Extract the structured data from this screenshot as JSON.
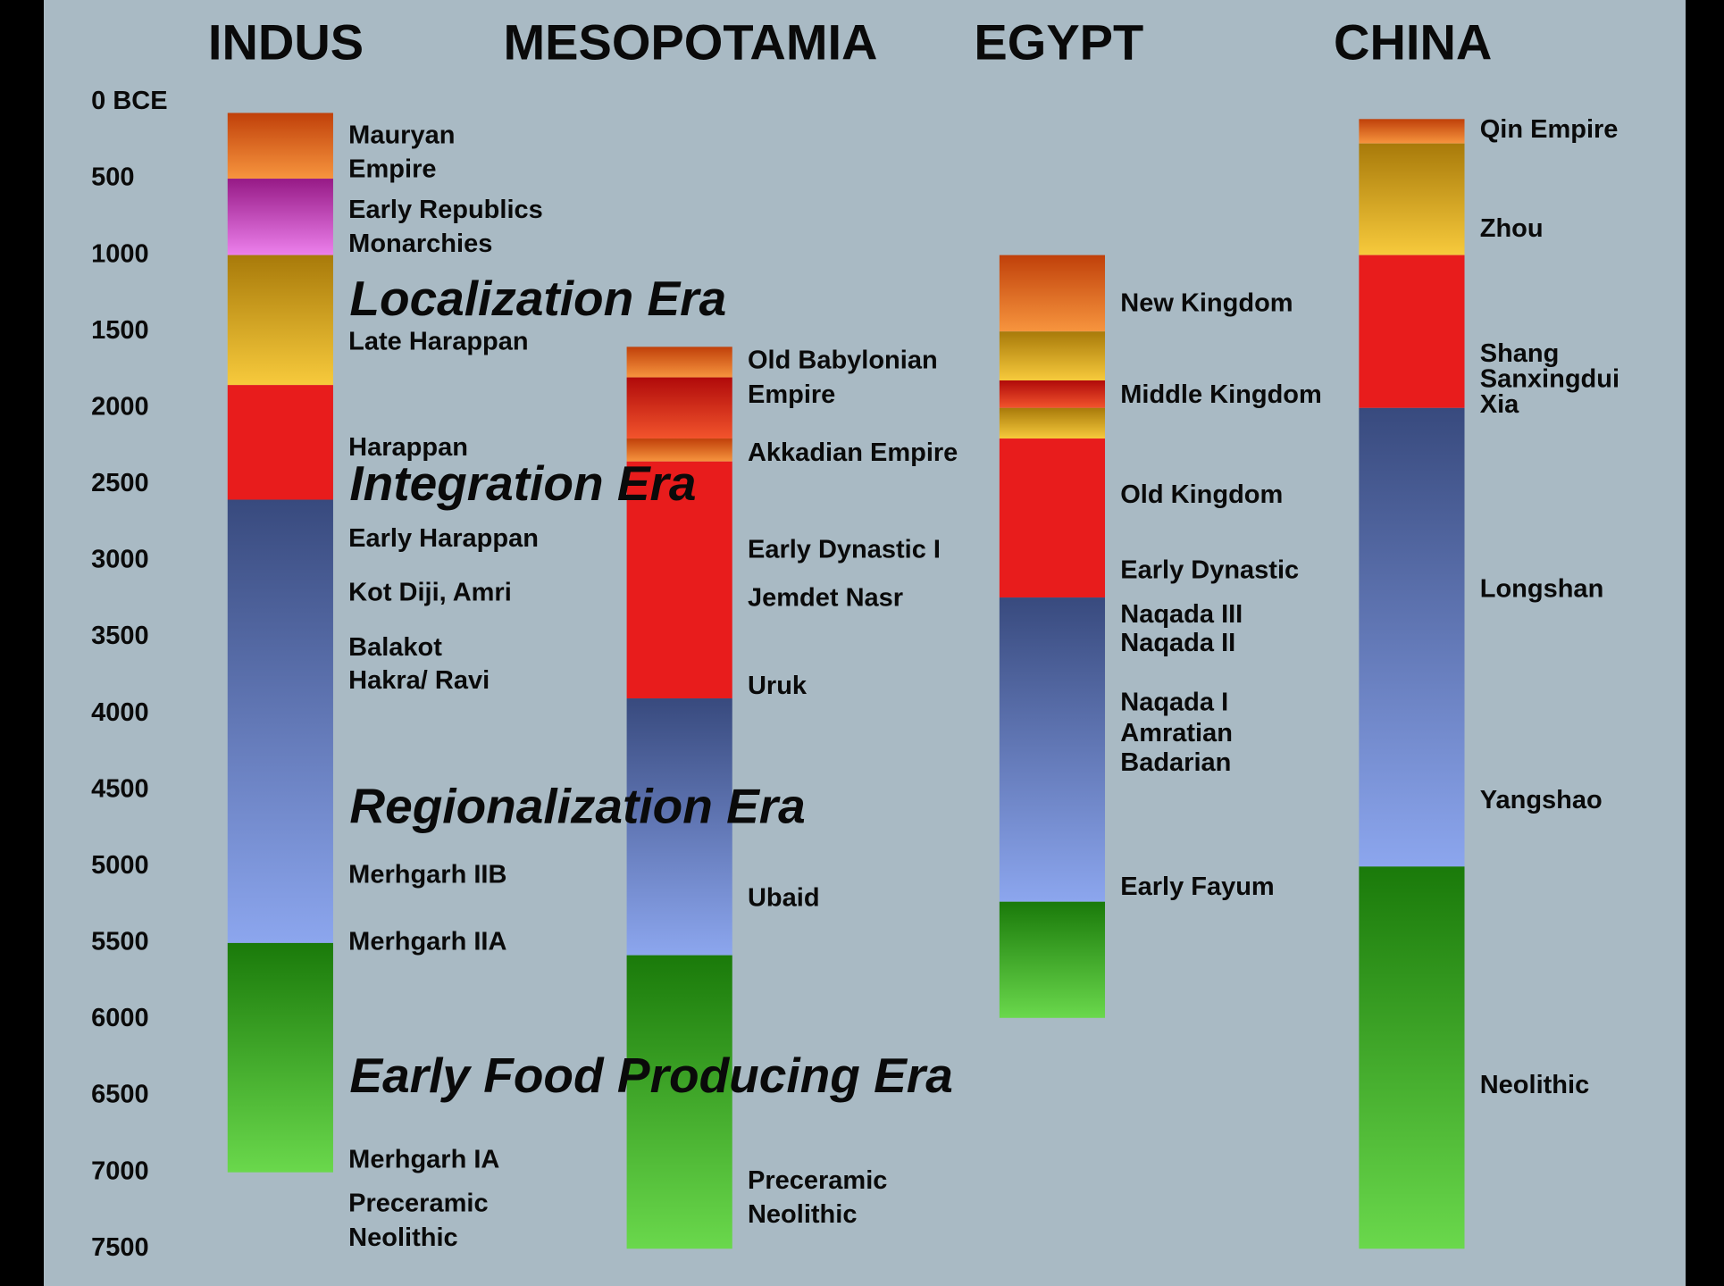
{
  "chart_data": {
    "type": "timeline",
    "ylim": [
      0,
      7500
    ],
    "yticks": [
      {
        "value": 0,
        "label": "0 BCE"
      },
      500,
      1000,
      1500,
      2000,
      2500,
      3000,
      3500,
      4000,
      4500,
      5000,
      5500,
      6000,
      6500,
      7000,
      7500
    ],
    "annotations": [
      "Localization Era",
      "Integration Era",
      "Regionalization Era",
      "Early Food Producing Era"
    ],
    "series": [
      {
        "name": "INDUS",
        "segments": [
          {
            "start": 70,
            "end": 500,
            "colors": [
              "#c0400a",
              "#f7953e"
            ]
          },
          {
            "start": 500,
            "end": 1000,
            "colors": [
              "#961a86",
              "#ec80ec"
            ]
          },
          {
            "start": 1000,
            "end": 1850,
            "colors": [
              "#a87a0a",
              "#f7ca3c"
            ]
          },
          {
            "start": 1850,
            "end": 2600,
            "colors": [
              "#e81c1c",
              "#e81c1c"
            ]
          },
          {
            "start": 2600,
            "end": 5500,
            "colors": [
              "#384a7e",
              "#8ca6ee"
            ]
          },
          {
            "start": 5500,
            "end": 7000,
            "colors": [
              "#1a7a0a",
              "#6ad84c"
            ]
          }
        ],
        "labels": [
          "Mauryan",
          "Empire",
          "Early Republics",
          "Monarchies",
          "Late Harappan",
          "Harappan",
          "Early Harappan",
          "Kot Diji, Amri",
          "Balakot",
          "Hakra/ Ravi",
          "Merhgarh IIB",
          "Merhgarh IIA",
          "Merhgarh IA",
          "Preceramic",
          "Neolithic"
        ]
      },
      {
        "name": "MESOPOTAMIA",
        "segments": [
          {
            "start": 1600,
            "end": 1800,
            "colors": [
              "#c0400a",
              "#f7953e"
            ]
          },
          {
            "start": 1800,
            "end": 2200,
            "colors": [
              "#b00a0a",
              "#f2542c"
            ]
          },
          {
            "start": 2200,
            "end": 2350,
            "colors": [
              "#c0400a",
              "#f7953e"
            ]
          },
          {
            "start": 2350,
            "end": 3900,
            "colors": [
              "#e81c1c",
              "#e81c1c"
            ]
          },
          {
            "start": 3900,
            "end": 5580,
            "colors": [
              "#384a7e",
              "#8ca6ee"
            ]
          },
          {
            "start": 5580,
            "end": 7500,
            "colors": [
              "#1a7a0a",
              "#6ad84c"
            ]
          }
        ],
        "labels": [
          "Old Babylonian",
          "Empire",
          "Akkadian Empire",
          "Early Dynastic I",
          "Jemdet Nasr",
          "Uruk",
          "Ubaid",
          "Preceramic",
          "Neolithic"
        ]
      },
      {
        "name": "EGYPT",
        "segments": [
          {
            "start": 1000,
            "end": 1500,
            "colors": [
              "#c0400a",
              "#f7953e"
            ]
          },
          {
            "start": 1500,
            "end": 1820,
            "colors": [
              "#a87a0a",
              "#f7ca3c"
            ]
          },
          {
            "start": 1820,
            "end": 2000,
            "colors": [
              "#b00a0a",
              "#f2542c"
            ]
          },
          {
            "start": 2000,
            "end": 2200,
            "colors": [
              "#a87a0a",
              "#f7ca3c"
            ]
          },
          {
            "start": 2200,
            "end": 3240,
            "colors": [
              "#e81c1c",
              "#e81c1c"
            ]
          },
          {
            "start": 3240,
            "end": 5230,
            "colors": [
              "#384a7e",
              "#8ca6ee"
            ]
          },
          {
            "start": 5230,
            "end": 5990,
            "colors": [
              "#1a7a0a",
              "#6ad84c"
            ]
          }
        ],
        "labels": [
          "New Kingdom",
          "Middle Kingdom",
          "Old Kingdom",
          "Early Dynastic",
          "Naqada III",
          "Naqada II",
          "Naqada I",
          "Amratian",
          "Badarian",
          "Early Fayum"
        ]
      },
      {
        "name": "CHINA",
        "segments": [
          {
            "start": 110,
            "end": 270,
            "colors": [
              "#c0400a",
              "#f7953e"
            ]
          },
          {
            "start": 270,
            "end": 1000,
            "colors": [
              "#a87a0a",
              "#f7ca3c"
            ]
          },
          {
            "start": 1000,
            "end": 2000,
            "colors": [
              "#e81c1c",
              "#e81c1c"
            ]
          },
          {
            "start": 2000,
            "end": 5000,
            "colors": [
              "#384a7e",
              "#8ca6ee"
            ]
          },
          {
            "start": 5000,
            "end": 7500,
            "colors": [
              "#1a7a0a",
              "#6ad84c"
            ]
          }
        ],
        "labels": [
          "Qin Empire",
          "Zhou",
          "Shang",
          "Sanxingdui",
          "Xia",
          "Longshan",
          "Yangshao",
          "Neolithic"
        ]
      }
    ]
  }
}
